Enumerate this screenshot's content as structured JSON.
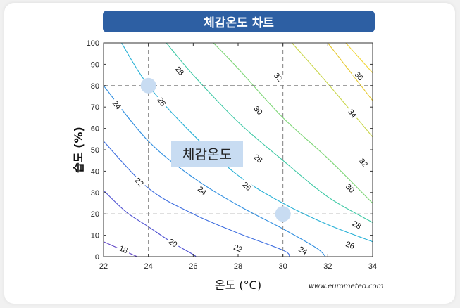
{
  "title": "체감온도 차트",
  "source": "www.eurometeo.com",
  "chart_data": {
    "type": "contour",
    "title": "체감온도 차트",
    "xlabel": "온도 (°C)",
    "ylabel": "습도 (%)",
    "xlim": [
      22,
      34
    ],
    "ylim": [
      0,
      100
    ],
    "xticks": [
      "22",
      "24",
      "26",
      "28",
      "30",
      "32",
      "34"
    ],
    "yticks": [
      "0",
      "10",
      "20",
      "30",
      "40",
      "50",
      "60",
      "70",
      "80",
      "90",
      "100"
    ],
    "grid": false,
    "center_label": "체감온도",
    "reference_lines": {
      "x": [
        24,
        30
      ],
      "y": [
        20,
        80
      ]
    },
    "highlight_points": [
      {
        "x": 24,
        "y": 80
      },
      {
        "x": 30,
        "y": 20
      }
    ],
    "contours": [
      {
        "level": 18,
        "color": "#5b3fc4",
        "points": [
          [
            22,
            7
          ],
          [
            23.5,
            0
          ]
        ]
      },
      {
        "level": 20,
        "color": "#4f52d2",
        "points": [
          [
            22,
            31
          ],
          [
            23,
            21
          ],
          [
            24,
            14
          ],
          [
            25,
            7
          ],
          [
            26,
            1
          ],
          [
            26.1,
            0
          ]
        ]
      },
      {
        "level": 22,
        "color": "#3f6fe0",
        "points": [
          [
            22,
            54
          ],
          [
            24,
            32
          ],
          [
            26,
            20
          ],
          [
            28,
            11
          ],
          [
            30,
            3
          ],
          [
            30.3,
            0
          ]
        ]
      },
      {
        "level": 24,
        "color": "#2f8ee0",
        "points": [
          [
            22,
            80
          ],
          [
            24,
            54
          ],
          [
            26,
            37
          ],
          [
            28,
            24
          ],
          [
            30,
            13
          ],
          [
            31.5,
            4
          ],
          [
            31.9,
            0
          ]
        ]
      },
      {
        "level": 26,
        "color": "#25b0d6",
        "points": [
          [
            22.8,
            100
          ],
          [
            24,
            80
          ],
          [
            26,
            57
          ],
          [
            28,
            38
          ],
          [
            30,
            25
          ],
          [
            32,
            15
          ],
          [
            34,
            7
          ]
        ]
      },
      {
        "level": 28,
        "color": "#3cc8a4",
        "points": [
          [
            24.8,
            100
          ],
          [
            26,
            85
          ],
          [
            28,
            63
          ],
          [
            30,
            45
          ],
          [
            32,
            28
          ],
          [
            34,
            16
          ]
        ]
      },
      {
        "level": 30,
        "color": "#7dd676",
        "points": [
          [
            26.9,
            100
          ],
          [
            28,
            88
          ],
          [
            30,
            65
          ],
          [
            32,
            46
          ],
          [
            34,
            25
          ]
        ]
      },
      {
        "level": 32,
        "color": "#c9d64a",
        "points": [
          [
            30.4,
            100
          ],
          [
            32,
            81
          ],
          [
            34,
            56
          ]
        ]
      },
      {
        "level": 34,
        "color": "#e6c82e",
        "points": [
          [
            32,
            100
          ],
          [
            34,
            73
          ]
        ]
      },
      {
        "level": 36,
        "color": "#f2d63a",
        "points": [
          [
            32.8,
            100
          ],
          [
            34,
            86
          ]
        ]
      }
    ],
    "contour_labels": [
      {
        "text": "18",
        "x": 22.9,
        "y": 3.5
      },
      {
        "text": "20",
        "x": 25.1,
        "y": 6.5
      },
      {
        "text": "22",
        "x": 23.6,
        "y": 35
      },
      {
        "text": "22",
        "x": 28,
        "y": 4
      },
      {
        "text": "24",
        "x": 22.6,
        "y": 71
      },
      {
        "text": "24",
        "x": 26.4,
        "y": 31
      },
      {
        "text": "24",
        "x": 30.9,
        "y": 3
      },
      {
        "text": "26",
        "x": 24.6,
        "y": 72.5
      },
      {
        "text": "26",
        "x": 28.4,
        "y": 33
      },
      {
        "text": "26",
        "x": 33,
        "y": 5.5
      },
      {
        "text": "28",
        "x": 25.4,
        "y": 87
      },
      {
        "text": "28",
        "x": 28.9,
        "y": 46
      },
      {
        "text": "28",
        "x": 33.3,
        "y": 15
      },
      {
        "text": "30",
        "x": 28.9,
        "y": 68.5
      },
      {
        "text": "30",
        "x": 33,
        "y": 32
      },
      {
        "text": "32",
        "x": 29.8,
        "y": 84
      },
      {
        "text": "32",
        "x": 33.6,
        "y": 44
      },
      {
        "text": "34",
        "x": 33.1,
        "y": 67
      },
      {
        "text": "36",
        "x": 33.4,
        "y": 84.5
      }
    ]
  }
}
